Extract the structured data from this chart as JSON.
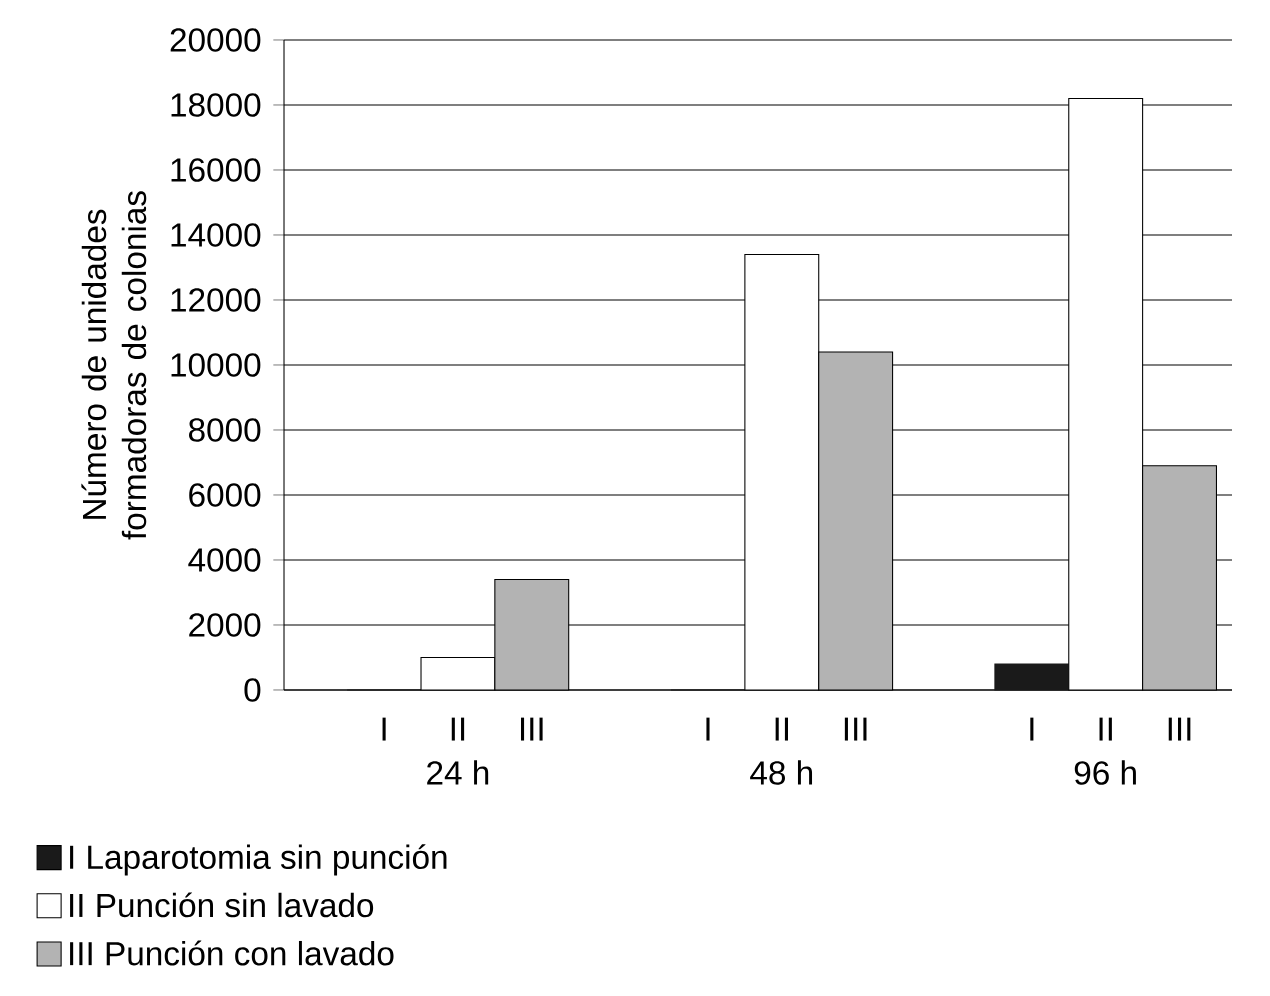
{
  "chart_data": {
    "type": "bar",
    "ylabel": "Número de unidades formadoras de colonias",
    "categories": [
      "24 h",
      "48 h",
      "96 h"
    ],
    "series": [
      {
        "name": "I Laparotomia sin punción",
        "color": "#1a1a1a",
        "values": [
          0,
          0,
          800
        ]
      },
      {
        "name": "II Punción sin lavado",
        "color": "#ffffff",
        "values": [
          1000,
          13400,
          18200
        ]
      },
      {
        "name": "III Punción con lavado",
        "color": "#b3b3b3",
        "values": [
          3400,
          10400,
          6900
        ]
      }
    ],
    "ylim": [
      0,
      20000
    ],
    "yticks": [
      0,
      2000,
      4000,
      6000,
      8000,
      10000,
      12000,
      14000,
      16000,
      18000,
      20000
    ],
    "grid": "y",
    "legend": "bottom left",
    "annotations": [
      "I",
      "II",
      "III",
      "I",
      "II",
      "III",
      "I",
      "II",
      "III"
    ]
  }
}
